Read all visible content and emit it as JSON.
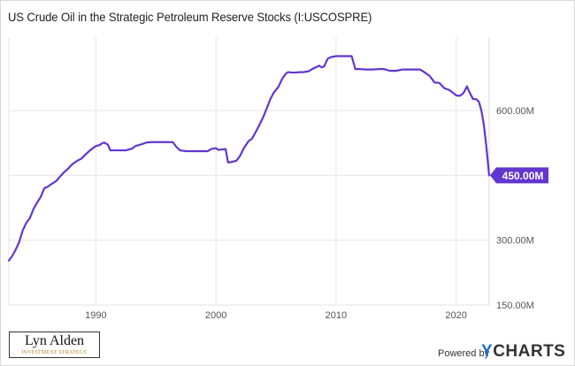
{
  "chart_data": {
    "type": "line",
    "title": "US Crude Oil in the Strategic Petroleum Reserve Stocks (I:USCOSPRE)",
    "xlabel": "",
    "ylabel": "",
    "unit": "M",
    "xlim": [
      1982.75,
      2022.75
    ],
    "ylim": [
      150,
      770
    ],
    "x_ticks": [
      1990,
      2000,
      2010,
      2020
    ],
    "x_tick_labels": [
      "1990",
      "2000",
      "2010",
      "2020"
    ],
    "y_ticks": [
      150,
      300,
      450,
      600
    ],
    "y_tick_labels": [
      "150.00M",
      "300.00M",
      "450.00M",
      "600.00M"
    ],
    "grid": true,
    "last_value_label": "450.00M",
    "series": [
      {
        "color": "#6236cf",
        "points": [
          [
            1982.75,
            253
          ],
          [
            1983.0,
            262
          ],
          [
            1983.3,
            277
          ],
          [
            1983.6,
            295
          ],
          [
            1983.9,
            322
          ],
          [
            1984.2,
            340
          ],
          [
            1984.5,
            351
          ],
          [
            1984.8,
            372
          ],
          [
            1985.1,
            387
          ],
          [
            1985.4,
            400
          ],
          [
            1985.7,
            420
          ],
          [
            1986.0,
            424
          ],
          [
            1986.3,
            430
          ],
          [
            1986.7,
            437
          ],
          [
            1987.0,
            447
          ],
          [
            1987.3,
            456
          ],
          [
            1987.7,
            466
          ],
          [
            1988.0,
            475
          ],
          [
            1988.4,
            483
          ],
          [
            1988.8,
            489
          ],
          [
            1989.2,
            500
          ],
          [
            1989.6,
            510
          ],
          [
            1990.0,
            518
          ],
          [
            1990.3,
            520
          ],
          [
            1990.5,
            524
          ],
          [
            1990.7,
            526
          ],
          [
            1991.0,
            521
          ],
          [
            1991.2,
            508
          ],
          [
            1991.6,
            508
          ],
          [
            1992.0,
            508
          ],
          [
            1992.5,
            508
          ],
          [
            1993.0,
            512
          ],
          [
            1993.3,
            518
          ],
          [
            1993.8,
            522
          ],
          [
            1994.2,
            526
          ],
          [
            1994.6,
            527
          ],
          [
            1995.0,
            527
          ],
          [
            1995.5,
            527
          ],
          [
            1996.0,
            527
          ],
          [
            1996.4,
            527
          ],
          [
            1996.7,
            516
          ],
          [
            1997.0,
            508
          ],
          [
            1997.5,
            506
          ],
          [
            1998.0,
            506
          ],
          [
            1998.5,
            506
          ],
          [
            1999.0,
            506
          ],
          [
            1999.3,
            506
          ],
          [
            1999.6,
            511
          ],
          [
            2000.0,
            513
          ],
          [
            2000.2,
            509
          ],
          [
            2000.5,
            510
          ],
          [
            2000.8,
            511
          ],
          [
            2001.0,
            480
          ],
          [
            2001.3,
            481
          ],
          [
            2001.7,
            484
          ],
          [
            2002.0,
            495
          ],
          [
            2002.3,
            512
          ],
          [
            2002.7,
            529
          ],
          [
            2003.0,
            535
          ],
          [
            2003.3,
            550
          ],
          [
            2003.6,
            566
          ],
          [
            2003.9,
            583
          ],
          [
            2004.2,
            603
          ],
          [
            2004.5,
            625
          ],
          [
            2004.8,
            641
          ],
          [
            2005.2,
            655
          ],
          [
            2005.5,
            673
          ],
          [
            2005.8,
            685
          ],
          [
            2006.0,
            689
          ],
          [
            2006.3,
            688
          ],
          [
            2006.6,
            688
          ],
          [
            2007.0,
            689
          ],
          [
            2007.3,
            689
          ],
          [
            2007.7,
            691
          ],
          [
            2008.0,
            696
          ],
          [
            2008.3,
            700
          ],
          [
            2008.6,
            704
          ],
          [
            2008.8,
            700
          ],
          [
            2009.0,
            702
          ],
          [
            2009.3,
            720
          ],
          [
            2009.6,
            724
          ],
          [
            2010.0,
            726
          ],
          [
            2010.5,
            726
          ],
          [
            2011.0,
            726
          ],
          [
            2011.3,
            726
          ],
          [
            2011.6,
            696
          ],
          [
            2012.0,
            696
          ],
          [
            2012.5,
            695
          ],
          [
            2013.0,
            695
          ],
          [
            2013.5,
            696
          ],
          [
            2014.0,
            696
          ],
          [
            2014.5,
            692
          ],
          [
            2015.0,
            692
          ],
          [
            2015.5,
            695
          ],
          [
            2016.0,
            695
          ],
          [
            2016.5,
            695
          ],
          [
            2017.0,
            695
          ],
          [
            2017.4,
            688
          ],
          [
            2017.8,
            680
          ],
          [
            2018.2,
            665
          ],
          [
            2018.6,
            664
          ],
          [
            2019.0,
            652
          ],
          [
            2019.4,
            648
          ],
          [
            2019.8,
            640
          ],
          [
            2020.0,
            635
          ],
          [
            2020.3,
            634
          ],
          [
            2020.6,
            640
          ],
          [
            2020.9,
            656
          ],
          [
            2021.1,
            643
          ],
          [
            2021.4,
            627
          ],
          [
            2021.7,
            626
          ],
          [
            2021.9,
            620
          ],
          [
            2022.1,
            600
          ],
          [
            2022.3,
            568
          ],
          [
            2022.5,
            520
          ],
          [
            2022.75,
            450
          ]
        ]
      }
    ]
  },
  "branding": {
    "logo_name": "Lyn Alden",
    "logo_tagline": "INVESTMENT STRATEGY",
    "powered_by": "Powered by",
    "ycharts_y": "Y",
    "ycharts_rest": "CHARTS"
  }
}
